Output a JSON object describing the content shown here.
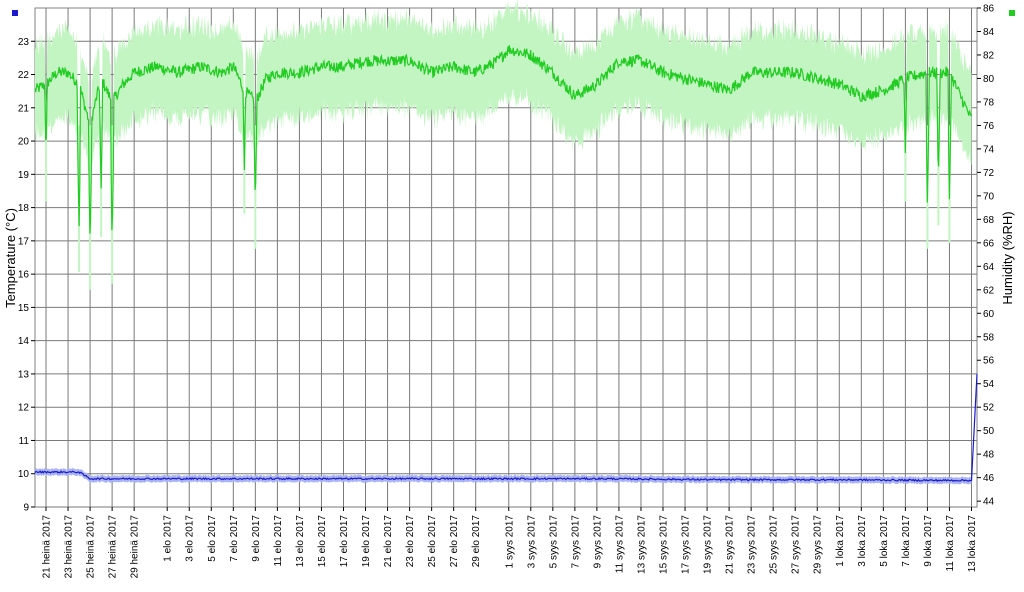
{
  "chart_data": {
    "type": "line",
    "xlabel": "",
    "ylabel_left": "Temperature (°C)",
    "ylabel_right": "Humidity (%RH)",
    "ylim_left": [
      9,
      24
    ],
    "ylim_right": [
      43.5,
      86
    ],
    "yticks_left": [
      9,
      10,
      11,
      12,
      13,
      14,
      15,
      16,
      17,
      18,
      19,
      20,
      21,
      22,
      23
    ],
    "yticks_right": [
      44,
      46,
      48,
      50,
      52,
      54,
      56,
      58,
      60,
      62,
      64,
      66,
      68,
      70,
      72,
      74,
      76,
      78,
      80,
      82,
      84,
      86
    ],
    "x_ticks": [
      "21 heinä 2017",
      "23 heinä 2017",
      "25 heinä 2017",
      "27 heinä 2017",
      "29 heinä 2017",
      "1 elo 2017",
      "3 elo 2017",
      "5 elo 2017",
      "7 elo 2017",
      "9 elo 2017",
      "11 elo 2017",
      "13 elo 2017",
      "15 elo 2017",
      "17 elo 2017",
      "19 elo 2017",
      "21 elo 2017",
      "23 elo 2017",
      "25 elo 2017",
      "27 elo 2017",
      "29 elo 2017",
      "1 syys 2017",
      "3 syys 2017",
      "5 syys 2017",
      "7 syys 2017",
      "9 syys 2017",
      "11 syys 2017",
      "13 syys 2017",
      "15 syys 2017",
      "17 syys 2017",
      "19 syys 2017",
      "21 syys 2017",
      "23 syys 2017",
      "25 syys 2017",
      "27 syys 2017",
      "29 syys 2017",
      "1 loka 2017",
      "3 loka 2017",
      "5 loka 2017",
      "7 loka 2017",
      "9 loka 2017",
      "11 loka 2017",
      "13 loka 2017"
    ],
    "grid": true,
    "legend": "corner markers",
    "series": [
      {
        "axis": "right",
        "color": "#22cc22",
        "band_color": "#c2f5c2",
        "x": [
          "2017-07-20",
          "2017-07-21",
          "2017-07-22",
          "2017-07-23",
          "2017-07-24",
          "2017-07-25",
          "2017-07-26",
          "2017-07-27",
          "2017-07-28",
          "2017-07-29",
          "2017-07-31",
          "2017-08-02",
          "2017-08-04",
          "2017-08-06",
          "2017-08-07",
          "2017-08-08",
          "2017-08-09",
          "2017-08-10",
          "2017-08-11",
          "2017-08-13",
          "2017-08-15",
          "2017-08-17",
          "2017-08-19",
          "2017-08-21",
          "2017-08-23",
          "2017-08-25",
          "2017-08-27",
          "2017-08-29",
          "2017-08-31",
          "2017-09-01",
          "2017-09-03",
          "2017-09-05",
          "2017-09-07",
          "2017-09-09",
          "2017-09-11",
          "2017-09-13",
          "2017-09-15",
          "2017-09-17",
          "2017-09-19",
          "2017-09-21",
          "2017-09-23",
          "2017-09-25",
          "2017-09-27",
          "2017-09-29",
          "2017-10-01",
          "2017-10-03",
          "2017-10-05",
          "2017-10-07",
          "2017-10-09",
          "2017-10-11",
          "2017-10-13"
        ],
        "values": [
          79,
          79.5,
          80.5,
          80.5,
          79.5,
          76,
          80,
          78,
          79.5,
          80.5,
          81,
          80.5,
          81,
          80.5,
          81,
          79,
          78,
          80,
          80.5,
          80.5,
          81,
          81,
          81.5,
          81.5,
          81.5,
          80.5,
          81,
          80.5,
          81.5,
          82.5,
          82,
          80.5,
          78.5,
          79.5,
          81.5,
          81.5,
          80.5,
          80,
          79.5,
          79,
          80.5,
          80.5,
          80.5,
          80,
          79.5,
          78.5,
          79,
          80,
          80.5,
          80.5,
          76.5
        ],
        "dips": [
          {
            "x": "2017-07-21",
            "value": 73
          },
          {
            "x": "2017-07-24",
            "value": 67
          },
          {
            "x": "2017-07-25",
            "value": 65.5
          },
          {
            "x": "2017-07-26",
            "value": 70
          },
          {
            "x": "2017-07-27",
            "value": 66
          },
          {
            "x": "2017-08-08",
            "value": 72
          },
          {
            "x": "2017-08-09",
            "value": 69
          },
          {
            "x": "2017-10-07",
            "value": 73
          },
          {
            "x": "2017-10-09",
            "value": 69
          },
          {
            "x": "2017-10-10",
            "value": 71
          },
          {
            "x": "2017-10-11",
            "value": 69.5
          }
        ]
      },
      {
        "axis": "left",
        "color": "#1a1acc",
        "band_color": "#aab4f0",
        "x": [
          "2017-07-20",
          "2017-07-21",
          "2017-07-23",
          "2017-07-24",
          "2017-07-25",
          "2017-07-27",
          "2017-08-01",
          "2017-08-10",
          "2017-08-20",
          "2017-08-31",
          "2017-09-10",
          "2017-09-20",
          "2017-10-01",
          "2017-10-10",
          "2017-10-13",
          "2017-10-13 12:00"
        ],
        "values": [
          10.05,
          10.05,
          10.05,
          10.05,
          9.85,
          9.85,
          9.85,
          9.85,
          9.85,
          9.85,
          9.85,
          9.82,
          9.82,
          9.8,
          9.8,
          13
        ]
      }
    ]
  }
}
